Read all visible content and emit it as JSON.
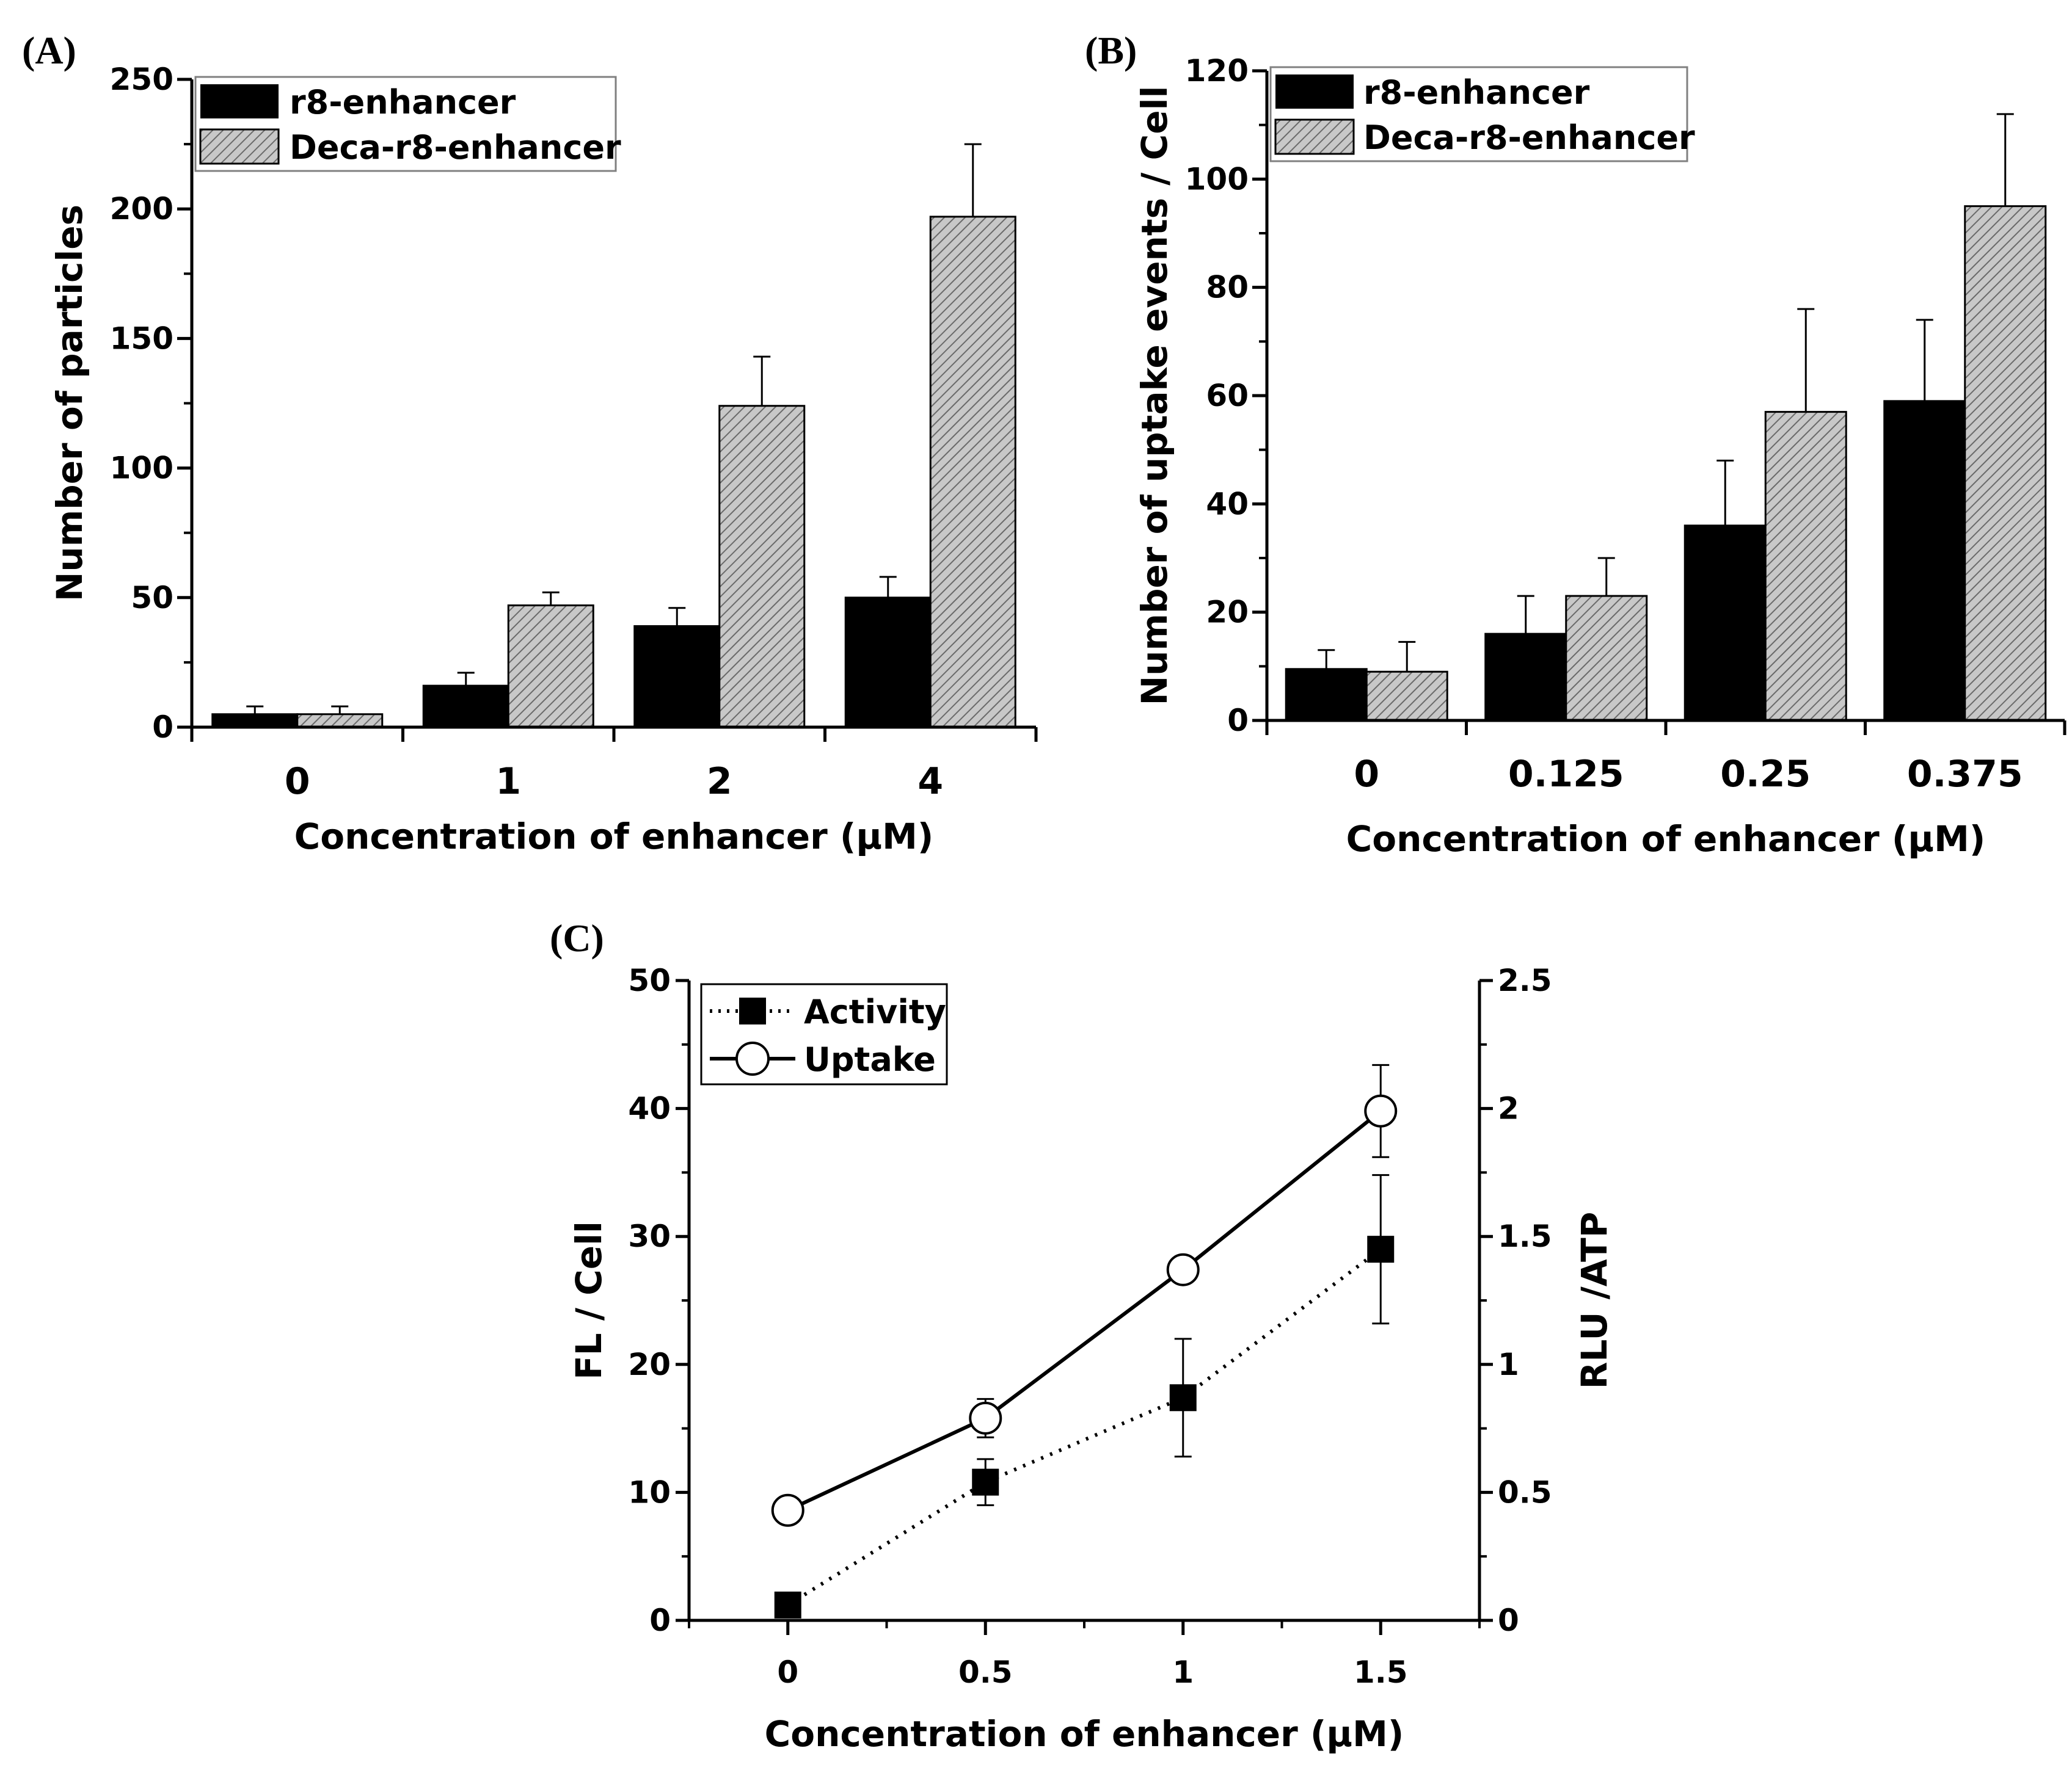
{
  "colors": {
    "dark_bar": "#000000",
    "light_bar": "#c8c8c8",
    "hatch": "#6a6a6a"
  },
  "chart_data": [
    {
      "panel": "(A)",
      "type": "bar",
      "categories": [
        "0",
        "1",
        "2",
        "4"
      ],
      "series": [
        {
          "name": "r8-enhancer",
          "values": [
            5,
            16,
            39,
            50
          ],
          "errors": [
            3,
            5,
            7,
            8
          ]
        },
        {
          "name": "Deca-r8-enhancer",
          "values": [
            5,
            47,
            124,
            197
          ],
          "errors": [
            3,
            5,
            19,
            28
          ]
        }
      ],
      "ylim": [
        0,
        250
      ],
      "yticks": [
        "0",
        "50",
        "100",
        "150",
        "200",
        "250"
      ],
      "xlabel": "Concentration of enhancer (μM)",
      "ylabel": "Number of particles",
      "legend": "top-left"
    },
    {
      "panel": "(B)",
      "type": "bar",
      "categories": [
        "0",
        "0.125",
        "0.25",
        "0.375"
      ],
      "series": [
        {
          "name": "r8-enhancer",
          "values": [
            9.5,
            16,
            36,
            59
          ],
          "errors": [
            3.5,
            7,
            12,
            15
          ]
        },
        {
          "name": "Deca-r8-enhancer",
          "values": [
            9,
            23,
            57,
            95
          ],
          "errors": [
            5.5,
            7,
            19,
            17
          ]
        }
      ],
      "ylim": [
        0,
        120
      ],
      "yticks": [
        "0",
        "20",
        "40",
        "60",
        "80",
        "100",
        "120"
      ],
      "xlabel": "Concentration of enhancer (μM)",
      "ylabel": "Number of uptake events / Cell",
      "legend": "top-left"
    },
    {
      "panel": "(C)",
      "type": "line",
      "x": [
        0,
        0.5,
        1,
        1.5
      ],
      "xticks": [
        "0",
        "0.5",
        "1",
        "1.5"
      ],
      "xlim": [
        -0.25,
        1.75
      ],
      "series": [
        {
          "name": "Activity",
          "axis": "right",
          "values": [
            0.06,
            0.54,
            0.87,
            1.45
          ],
          "errors": [
            0.03,
            0.09,
            0.23,
            0.29
          ],
          "marker": "filled-square",
          "line": "dotted"
        },
        {
          "name": "Uptake",
          "axis": "left",
          "values": [
            8.6,
            15.8,
            27.4,
            39.8
          ],
          "errors": [
            1.0,
            1.5,
            0.8,
            3.6
          ],
          "marker": "open-circle",
          "line": "solid"
        }
      ],
      "ylim_left": [
        0,
        50
      ],
      "yticks_left": [
        "0",
        "10",
        "20",
        "30",
        "40",
        "50"
      ],
      "ylim_right": [
        0,
        2.5
      ],
      "yticks_right": [
        "0",
        "0.5",
        "1",
        "1.5",
        "2",
        "2.5"
      ],
      "xlabel": "Concentration of enhancer (μM)",
      "ylabel_left": "FL / Cell",
      "ylabel_right": "RLU /ATP",
      "legend": "top-left"
    }
  ]
}
